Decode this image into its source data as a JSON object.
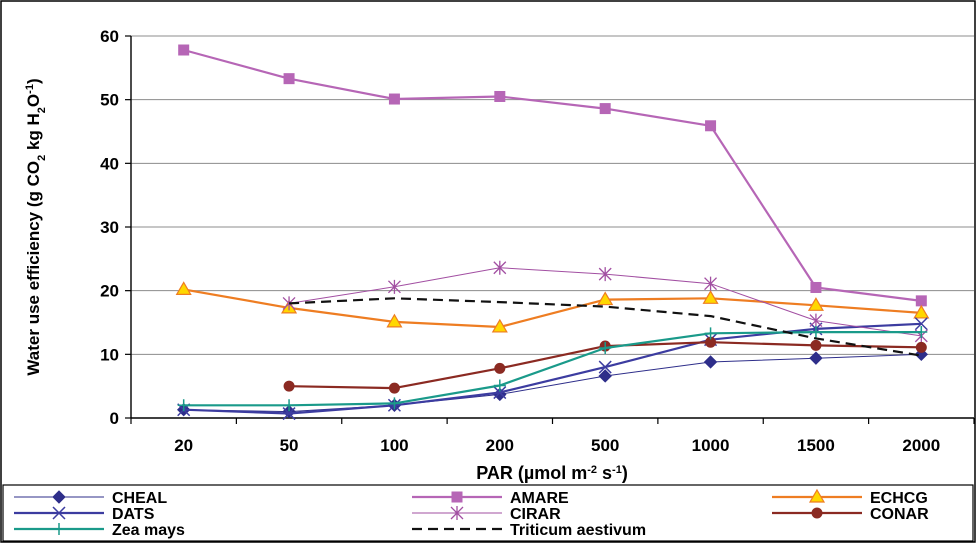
{
  "chart_data": {
    "type": "line",
    "title": "",
    "xlabel_parts": [
      "PAR (µmol m",
      "-2",
      " s",
      "-1",
      ")"
    ],
    "ylabel_parts": [
      "Water use efficiency (g CO",
      "2",
      " kg H",
      "2",
      "O",
      "-1",
      ")"
    ],
    "categories": [
      "20",
      "50",
      "100",
      "200",
      "500",
      "1000",
      "1500",
      "2000"
    ],
    "ylim": [
      0,
      60
    ],
    "yticks": [
      "0",
      "10",
      "20",
      "30",
      "40",
      "50",
      "60"
    ],
    "grid": "horizontal",
    "legend_position": "bottom",
    "series": [
      {
        "name": "CHEAL",
        "color": "#2e2e8a",
        "marker": "diamond",
        "dash": "solid",
        "width": 1,
        "values": [
          1.3,
          1.0,
          2.0,
          3.7,
          6.6,
          8.8,
          9.4,
          10.0
        ]
      },
      {
        "name": "AMARE",
        "color": "#b666b6",
        "marker": "square",
        "dash": "solid",
        "width": 2.2,
        "values": [
          57.8,
          53.3,
          50.1,
          50.5,
          48.6,
          45.9,
          20.5,
          18.4
        ]
      },
      {
        "name": "ECHCG",
        "color": "#ee7d22",
        "marker": "triangle",
        "dash": "solid",
        "width": 2.2,
        "values": [
          20.2,
          17.3,
          15.1,
          14.3,
          18.6,
          18.8,
          17.7,
          16.5
        ]
      },
      {
        "name": "DATS",
        "color": "#3c3ca0",
        "marker": "x",
        "dash": "solid",
        "width": 2.2,
        "values": [
          1.3,
          0.7,
          2.0,
          4.0,
          8.0,
          12.3,
          14.0,
          14.8
        ]
      },
      {
        "name": "CIRAR",
        "color": "#a24fa2",
        "marker": "star",
        "dash": "solid",
        "width": 1,
        "values": [
          null,
          18.0,
          20.6,
          23.6,
          22.6,
          21.1,
          15.3,
          12.9
        ]
      },
      {
        "name": "CONAR",
        "color": "#8b2a22",
        "marker": "circle",
        "dash": "solid",
        "width": 2.2,
        "values": [
          null,
          5.0,
          4.7,
          7.8,
          11.3,
          11.9,
          11.4,
          11.1
        ]
      },
      {
        "name": "Zea mays",
        "color": "#1a9a8a",
        "marker": "plus",
        "dash": "solid",
        "width": 2.2,
        "values": [
          2.0,
          2.0,
          2.3,
          5.1,
          11.0,
          13.3,
          13.5,
          13.5
        ]
      },
      {
        "name": "Triticum aestivum",
        "color": "#111111",
        "marker": "none",
        "dash": "dashed",
        "width": 2.2,
        "values": [
          null,
          18.0,
          18.8,
          18.2,
          17.5,
          16.0,
          12.5,
          9.8
        ]
      }
    ]
  }
}
